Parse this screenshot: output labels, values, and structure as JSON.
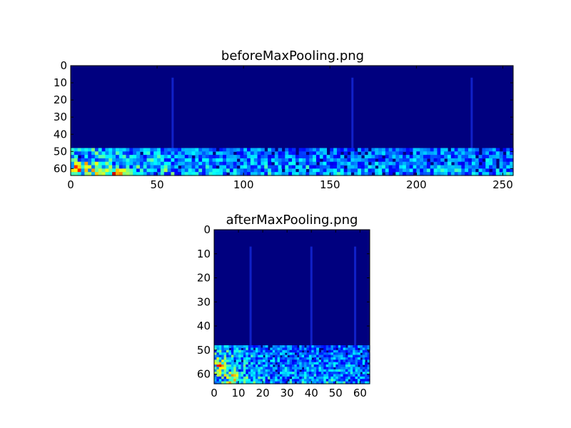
{
  "figure": {
    "background": "#ffffff"
  },
  "chart_data": [
    {
      "type": "heatmap",
      "title": "beforeMaxPooling.png",
      "xlabel": "",
      "ylabel": "",
      "xlim": [
        0,
        256
      ],
      "ylim": [
        64,
        0
      ],
      "x_ticks": [
        "0",
        "50",
        "100",
        "150",
        "200",
        "250"
      ],
      "x_tick_values": [
        0,
        50,
        100,
        150,
        200,
        250
      ],
      "y_ticks": [
        "0",
        "10",
        "20",
        "30",
        "40",
        "50",
        "60"
      ],
      "y_tick_values": [
        0,
        10,
        20,
        30,
        40,
        50,
        60
      ],
      "colormap": "jet",
      "background_value_color": "#00007f",
      "vertical_lines": [
        {
          "x": 59,
          "y_start": 7,
          "y_end": 48
        },
        {
          "x": 163,
          "y_start": 7,
          "y_end": 48
        },
        {
          "x": 232,
          "y_start": 7,
          "y_end": 48
        }
      ],
      "noise_band": {
        "y_start": 48,
        "y_end": 64
      },
      "hotspots": [
        {
          "x": 5,
          "y": 58
        },
        {
          "x": 25,
          "y": 62
        }
      ]
    },
    {
      "type": "heatmap",
      "title": "afterMaxPooling.png",
      "xlabel": "",
      "ylabel": "",
      "xlim": [
        0,
        64
      ],
      "ylim": [
        64,
        0
      ],
      "x_ticks": [
        "0",
        "10",
        "20",
        "30",
        "40",
        "50",
        "60"
      ],
      "x_tick_values": [
        0,
        10,
        20,
        30,
        40,
        50,
        60
      ],
      "y_ticks": [
        "0",
        "10",
        "20",
        "30",
        "40",
        "50",
        "60"
      ],
      "y_tick_values": [
        0,
        10,
        20,
        30,
        40,
        50,
        60
      ],
      "colormap": "jet",
      "background_value_color": "#00007f",
      "vertical_lines": [
        {
          "x": 15,
          "y_start": 7,
          "y_end": 48
        },
        {
          "x": 40,
          "y_start": 7,
          "y_end": 48
        },
        {
          "x": 58,
          "y_start": 7,
          "y_end": 48
        }
      ],
      "noise_band": {
        "y_start": 48,
        "y_end": 64
      },
      "hotspots": [
        {
          "x": 2,
          "y": 56
        },
        {
          "x": 7,
          "y": 61
        }
      ]
    }
  ]
}
